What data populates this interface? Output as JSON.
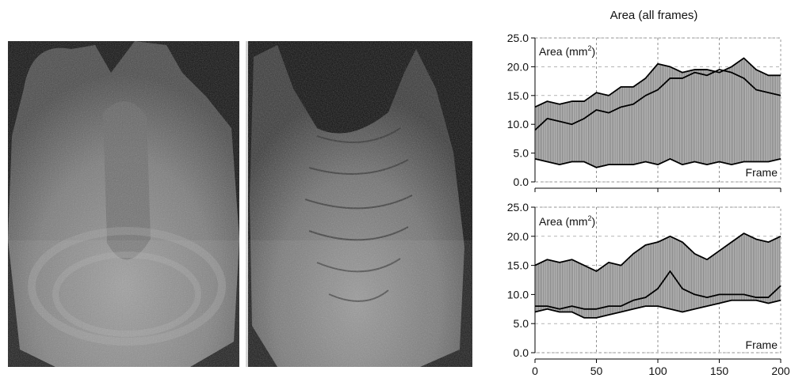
{
  "images": [
    {
      "name": "ultrasound-scan-left"
    },
    {
      "name": "ultrasound-scan-right"
    }
  ],
  "chart_data": [
    {
      "type": "area",
      "title": "Area (all frames)",
      "ylabel": "Area (mm",
      "ylabel_sup": "2",
      "ylabel_close": ")",
      "xlabel": "Frame",
      "xlim": [
        0,
        200
      ],
      "ylim": [
        0,
        25
      ],
      "yticks": [
        "0.0",
        "5.0",
        "10.0",
        "15.0",
        "20.0",
        "25.0"
      ],
      "grid": true,
      "x": [
        0,
        10,
        20,
        30,
        40,
        50,
        60,
        70,
        80,
        90,
        100,
        110,
        120,
        130,
        140,
        150,
        160,
        170,
        180,
        190,
        200
      ],
      "series": [
        {
          "values": [
            13,
            14,
            13.5,
            14,
            14,
            15.5,
            15,
            16.5,
            16.5,
            18,
            20.5,
            20,
            19,
            19.5,
            19.5,
            19,
            20,
            21.5,
            19.5,
            18.5,
            18.5
          ]
        },
        {
          "values": [
            9,
            11,
            10.5,
            10,
            11,
            12.5,
            12,
            13,
            13.5,
            15,
            16,
            18,
            18,
            19,
            18.5,
            19.5,
            19,
            18,
            16,
            15.5,
            15
          ]
        },
        {
          "values": [
            4,
            3.5,
            3,
            3.5,
            3.5,
            2.5,
            3,
            3,
            3,
            3.5,
            3,
            4,
            3,
            3.5,
            3,
            3.5,
            3,
            3.5,
            3.5,
            3.5,
            4
          ]
        }
      ]
    },
    {
      "type": "area",
      "ylabel": "Area (mm",
      "ylabel_sup": "2",
      "ylabel_close": ")",
      "xlabel": "Frame",
      "xlim": [
        0,
        200
      ],
      "ylim": [
        0,
        25
      ],
      "yticks": [
        "0.0",
        "5.0",
        "10.0",
        "15.0",
        "20.0",
        "25.0"
      ],
      "xticks": [
        "0",
        "50",
        "100",
        "150",
        "200"
      ],
      "grid": true,
      "x": [
        0,
        10,
        20,
        30,
        40,
        50,
        60,
        70,
        80,
        90,
        100,
        110,
        120,
        130,
        140,
        150,
        160,
        170,
        180,
        190,
        200
      ],
      "series": [
        {
          "values": [
            15,
            16,
            15.5,
            16,
            15,
            14,
            15.5,
            15,
            17,
            18.5,
            19,
            20,
            19,
            17,
            16,
            17.5,
            19,
            20.5,
            19.5,
            19,
            20
          ]
        },
        {
          "values": [
            8,
            8,
            7.5,
            8,
            7.5,
            7.5,
            8,
            8,
            9,
            9.5,
            11,
            14,
            11,
            10,
            9.5,
            10,
            10,
            10,
            9.5,
            9.5,
            11.5
          ]
        },
        {
          "values": [
            7,
            7.5,
            7,
            7,
            6,
            6,
            6.5,
            7,
            7.5,
            8,
            8,
            7.5,
            7,
            7.5,
            8,
            8.5,
            9,
            9,
            9,
            8.5,
            9
          ]
        }
      ]
    }
  ]
}
